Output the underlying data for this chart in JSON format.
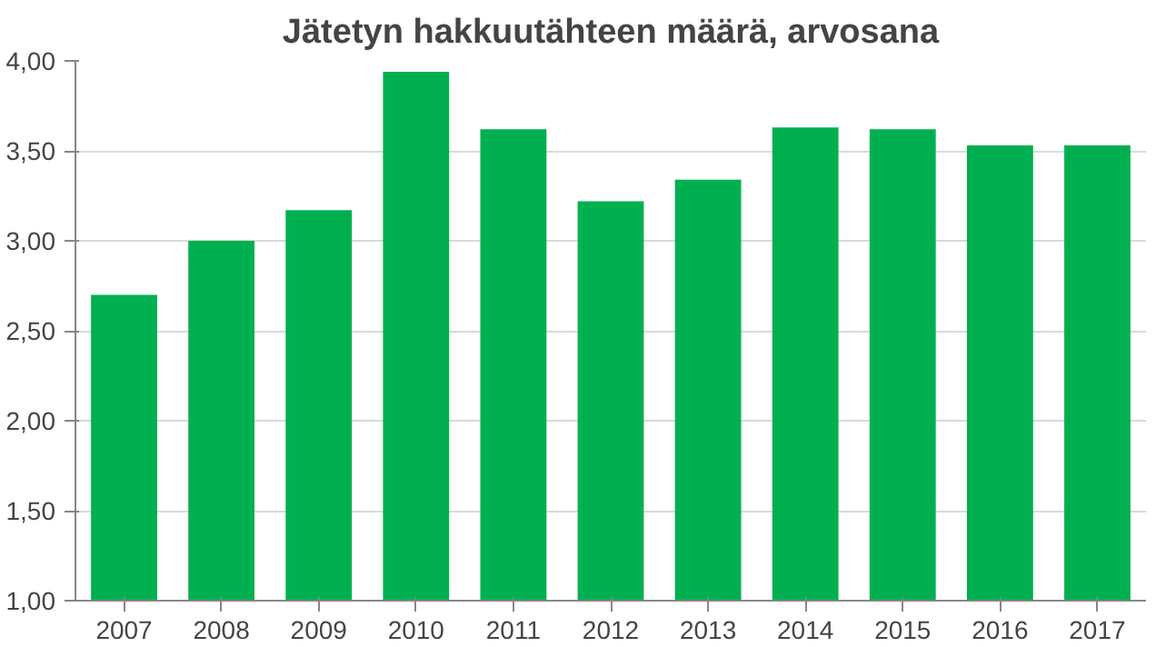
{
  "chart_data": {
    "type": "bar",
    "title": "Jätetyn hakkuutähteen määrä, arvosana",
    "categories": [
      "2007",
      "2008",
      "2009",
      "2010",
      "2011",
      "2012",
      "2013",
      "2014",
      "2015",
      "2016",
      "2017"
    ],
    "values": [
      2.7,
      3.0,
      3.17,
      3.94,
      3.62,
      3.22,
      3.34,
      3.63,
      3.62,
      3.53,
      3.53
    ],
    "color": "#00b050",
    "ylim": [
      1,
      4
    ],
    "yticks": [
      {
        "value": 1,
        "label": "1,00"
      },
      {
        "value": 1.5,
        "label": "1,50"
      },
      {
        "value": 2,
        "label": "2,00"
      },
      {
        "value": 2.5,
        "label": "2,50"
      },
      {
        "value": 3,
        "label": "3,00"
      },
      {
        "value": 3.5,
        "label": "3,50"
      },
      {
        "value": 4,
        "label": "4,00"
      }
    ],
    "grid": "y"
  }
}
